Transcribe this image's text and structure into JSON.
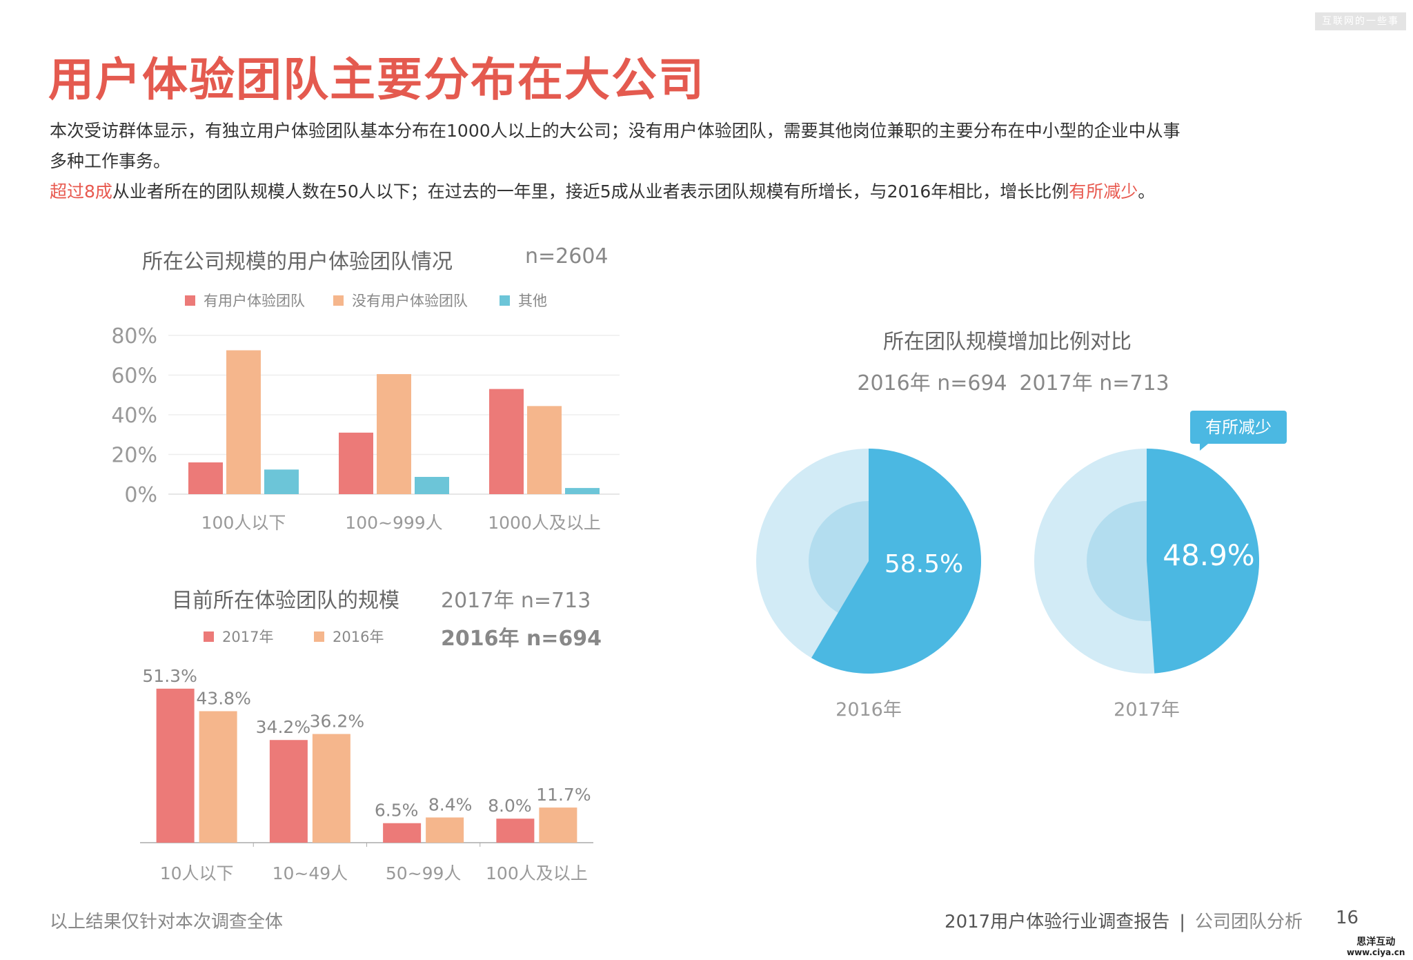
{
  "watermark": "互联网的一些事",
  "title": "用户体验团队主要分布在大公司",
  "paragraph": {
    "line1": "本次受访群体显示，有独立用户体验团队基本分布在1000人以上的大公司；没有用户体验团队，需要其他岗位兼职的主要分布在中小型的企业中从事",
    "line2": "多种工作事务。",
    "line3_red1": "超过8成",
    "line3_mid": "从业者所在的团队规模人数在50人以下；在过去的一年里，接近5成从业者表示团队规模有所增长，与2016年相比，增长比例",
    "line3_red2": "有所减少",
    "line3_end": "。"
  },
  "colors": {
    "red": "#ec7a78",
    "orange": "#f5b68c",
    "cyan": "#6cc5d8",
    "pie_dark": "#4bb8e2",
    "pie_light": "#d2ebf6",
    "pie_mid": "#b3ddef",
    "title": "#e45a4f"
  },
  "chart_data": [
    {
      "type": "bar",
      "title": "所在公司规模的用户体验团队情况",
      "n_label": "n=2604",
      "categories": [
        "100人以下",
        "100~999人",
        "1000人及以上"
      ],
      "yticks": [
        "0%",
        "20%",
        "40%",
        "60%",
        "80%"
      ],
      "ylim": [
        0,
        80
      ],
      "grid": true,
      "legend": "top",
      "series": [
        {
          "name": "有用户体验团队",
          "values": [
            16,
            31,
            53
          ]
        },
        {
          "name": "没有用户体验团队",
          "values": [
            72.5,
            60.5,
            44.4
          ]
        },
        {
          "name": "其他",
          "values": [
            12.4,
            8.7,
            3.1
          ]
        }
      ]
    },
    {
      "type": "bar",
      "title": "目前所在体验团队的规模",
      "n_label": "2017年 n=713",
      "n_label2": "2016年 n=694",
      "categories": [
        "10人以下",
        "10~49人",
        "50~99人",
        "100人及以上"
      ],
      "legend": "top",
      "series": [
        {
          "name": "2017年",
          "values": [
            51.3,
            34.2,
            6.5,
            8.0
          ],
          "labels": [
            "51.3%",
            "34.2%",
            "6.5%",
            "8.0%"
          ]
        },
        {
          "name": "2016年",
          "values": [
            43.8,
            36.2,
            8.4,
            11.7
          ],
          "labels": [
            "43.8%",
            "36.2%",
            "8.4%",
            "11.7%"
          ]
        }
      ]
    },
    {
      "type": "pie",
      "title": "所在团队规模增加比例对比",
      "subtitle": [
        "2016年 n=694",
        "2017年 n=713"
      ],
      "pies": [
        {
          "name": "2016年",
          "value": 58.5,
          "label": "58.5%"
        },
        {
          "name": "2017年",
          "value": 48.9,
          "label": "48.9%"
        }
      ],
      "annotation": "有所减少"
    }
  ],
  "footer": {
    "note": "以上结果仅针对本次调查全体",
    "report": "2017用户体验行业调查报告",
    "separator": "|",
    "section": "公司团队分析",
    "page": "16"
  },
  "logo": {
    "name": "思洋互动",
    "url": "www.ciya.cn"
  }
}
